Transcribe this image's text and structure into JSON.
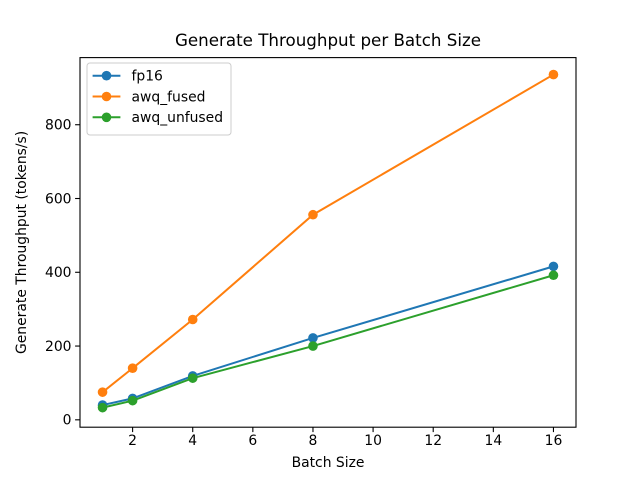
{
  "figure": {
    "background": "#ffffff"
  },
  "chart_data": {
    "type": "line",
    "title": "Generate Throughput per Batch Size",
    "xlabel": "Batch Size",
    "ylabel": "Generate Throughput (tokens/s)",
    "x": [
      1,
      2,
      4,
      8,
      16
    ],
    "series": [
      {
        "name": "fp16",
        "color": "#1f77b4",
        "values": [
          40,
          58,
          119,
          222,
          416
        ]
      },
      {
        "name": "awq_fused",
        "color": "#ff7f0e",
        "values": [
          75,
          140,
          272,
          556,
          936
        ]
      },
      {
        "name": "awq_unfused",
        "color": "#2ca02c",
        "values": [
          33,
          52,
          113,
          200,
          392
        ]
      }
    ],
    "xticks": [
      2,
      4,
      6,
      8,
      10,
      12,
      14,
      16
    ],
    "yticks": [
      0,
      200,
      400,
      600,
      800
    ],
    "xlim": [
      0.25,
      16.75
    ],
    "ylim": [
      -20,
      982
    ],
    "grid": false,
    "marker": "o",
    "legend": {
      "position": "upper left",
      "entries": [
        "fp16",
        "awq_fused",
        "awq_unfused"
      ],
      "border_color": "#cccccc",
      "background": "#ffffff"
    },
    "axis_color": "#000000",
    "text_color": "#000000"
  }
}
